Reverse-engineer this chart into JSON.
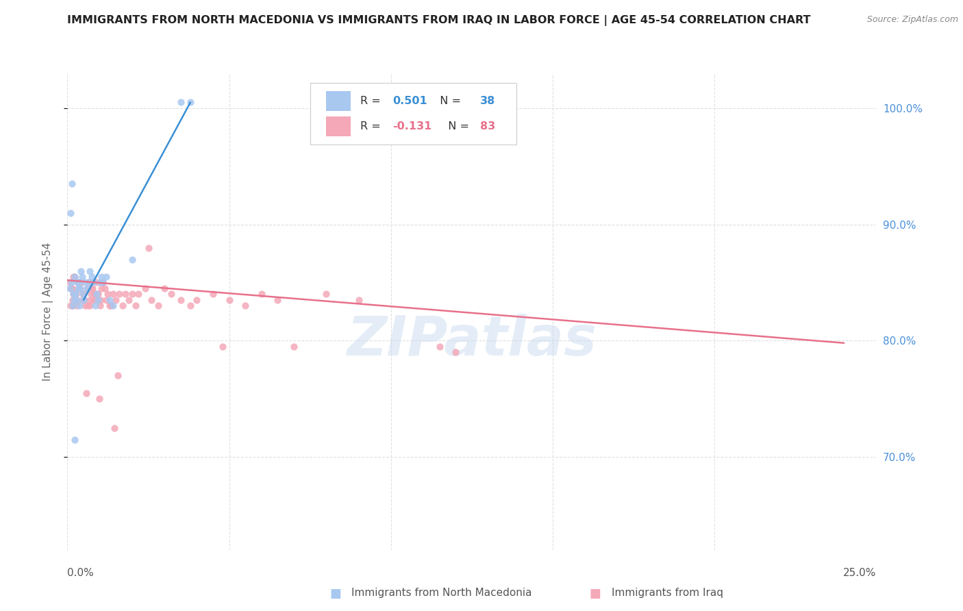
{
  "title": "IMMIGRANTS FROM NORTH MACEDONIA VS IMMIGRANTS FROM IRAQ IN LABOR FORCE | AGE 45-54 CORRELATION CHART",
  "source": "Source: ZipAtlas.com",
  "ylabel": "In Labor Force | Age 45-54",
  "x_min": 0.0,
  "x_max": 25.0,
  "y_min": 62.0,
  "y_max": 103.0,
  "legend1_r": "0.501",
  "legend1_n": "38",
  "legend2_r": "-0.131",
  "legend2_n": "83",
  "blue_color": "#a8c8f0",
  "pink_color": "#f4a8b8",
  "blue_line_color": "#3a8fd4",
  "pink_line_color": "#e8708a",
  "blue_line_x0": 0.5,
  "blue_line_y0": 83.5,
  "blue_line_x1": 3.8,
  "blue_line_y1": 100.5,
  "pink_line_x0": 0.0,
  "pink_line_y0": 85.2,
  "pink_line_x1": 24.0,
  "pink_line_y1": 79.8,
  "macedonia_scatter_x": [
    0.08,
    0.12,
    0.15,
    0.18,
    0.2,
    0.22,
    0.25,
    0.28,
    0.3,
    0.32,
    0.35,
    0.38,
    0.4,
    0.42,
    0.45,
    0.48,
    0.5,
    0.55,
    0.6,
    0.65,
    0.7,
    0.75,
    0.8,
    0.85,
    0.9,
    0.95,
    1.0,
    1.05,
    1.1,
    1.2,
    1.3,
    1.4,
    2.0,
    3.5,
    3.8,
    0.1,
    0.14,
    0.22
  ],
  "macedonia_scatter_y": [
    84.5,
    85.0,
    83.0,
    84.0,
    83.5,
    85.5,
    84.0,
    83.5,
    85.0,
    84.5,
    85.0,
    83.0,
    84.5,
    86.0,
    85.5,
    84.0,
    83.5,
    85.0,
    84.5,
    85.0,
    86.0,
    85.5,
    85.0,
    83.0,
    84.0,
    83.5,
    85.0,
    85.5,
    85.0,
    85.5,
    83.5,
    83.0,
    87.0,
    100.5,
    100.5,
    91.0,
    93.5,
    71.5
  ],
  "iraq_scatter_x": [
    0.08,
    0.12,
    0.15,
    0.18,
    0.2,
    0.22,
    0.25,
    0.28,
    0.3,
    0.35,
    0.4,
    0.45,
    0.5,
    0.55,
    0.6,
    0.65,
    0.7,
    0.75,
    0.8,
    0.85,
    0.9,
    0.95,
    1.0,
    1.05,
    1.1,
    1.2,
    1.3,
    1.4,
    1.5,
    1.6,
    1.7,
    1.8,
    1.9,
    2.0,
    2.1,
    2.2,
    2.4,
    2.6,
    2.8,
    3.0,
    3.2,
    3.5,
    3.8,
    4.0,
    4.5,
    5.0,
    5.5,
    6.0,
    6.5,
    7.0,
    8.0,
    9.0,
    12.0,
    0.1,
    0.14,
    0.16,
    0.19,
    0.23,
    0.26,
    0.29,
    0.33,
    0.37,
    0.42,
    0.47,
    0.52,
    0.58,
    0.63,
    0.68,
    0.73,
    0.78,
    0.83,
    0.88,
    0.93,
    0.98,
    1.03,
    1.15,
    1.25,
    1.35,
    1.45,
    1.55,
    2.5,
    4.8,
    11.5
  ],
  "iraq_scatter_y": [
    85.0,
    84.5,
    83.0,
    85.5,
    84.0,
    85.5,
    84.0,
    83.5,
    85.0,
    84.5,
    85.0,
    83.5,
    84.0,
    83.0,
    84.5,
    85.0,
    83.0,
    84.5,
    83.5,
    84.0,
    85.0,
    84.0,
    83.0,
    84.5,
    85.0,
    83.5,
    83.0,
    84.0,
    83.5,
    84.0,
    83.0,
    84.0,
    83.5,
    84.0,
    83.0,
    84.0,
    84.5,
    83.5,
    83.0,
    84.5,
    84.0,
    83.5,
    83.0,
    83.5,
    84.0,
    83.5,
    83.0,
    84.0,
    83.5,
    79.5,
    84.0,
    83.5,
    79.0,
    83.0,
    84.5,
    83.5,
    84.0,
    83.5,
    84.0,
    83.0,
    85.0,
    84.5,
    85.0,
    84.0,
    83.5,
    75.5,
    83.0,
    83.5,
    84.0,
    84.5,
    84.0,
    83.5,
    84.0,
    75.0,
    83.5,
    84.5,
    84.0,
    83.0,
    72.5,
    77.0,
    88.0,
    79.5,
    79.5
  ],
  "background_color": "#ffffff",
  "grid_color": "#e0e0e0",
  "title_color": "#222222",
  "tick_color_right": "#4a90d9",
  "watermark_text": "ZIPatlas",
  "watermark_color": "#c5d8ee",
  "watermark_alpha": 0.45
}
